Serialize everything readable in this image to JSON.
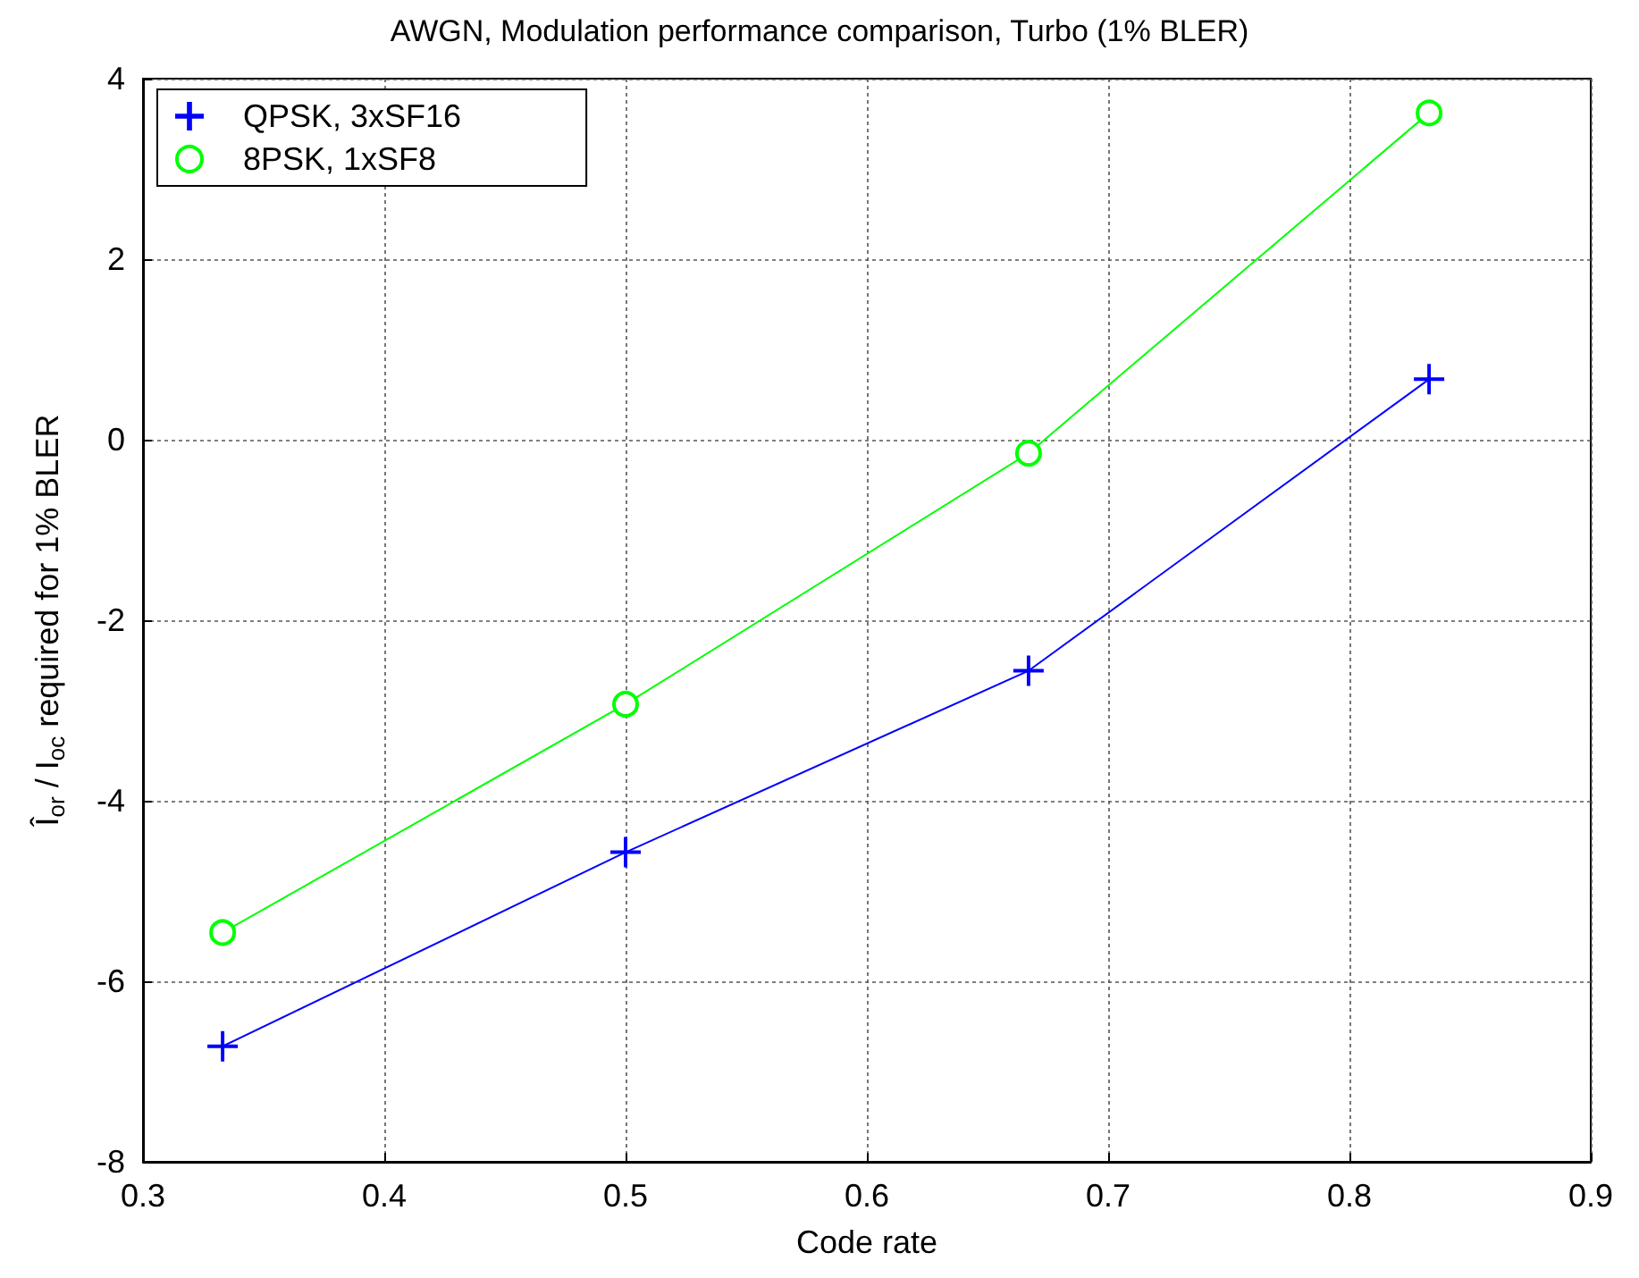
{
  "chart_data": {
    "type": "line",
    "title": "AWGN, Modulation performance comparison, Turbo (1% BLER)",
    "xlabel": "Code rate",
    "ylabel": "Î$_{or}$ / I$_{oc}$ required for 1% BLER",
    "x": [
      0.333,
      0.5,
      0.667,
      0.833
    ],
    "series": [
      {
        "name": "QPSK, 3xSF16",
        "color": "#0000ff",
        "marker": "cross",
        "values": [
          -6.72,
          -4.57,
          -2.56,
          0.67
        ]
      },
      {
        "name": "8PSK, 1xSF8",
        "color": "#00ff00",
        "marker": "circle",
        "values": [
          -5.46,
          -2.93,
          -0.15,
          3.62
        ]
      }
    ],
    "xlim": [
      0.3,
      0.9
    ],
    "xticks": [
      0.3,
      0.4,
      0.5,
      0.6,
      0.7,
      0.8,
      0.9
    ],
    "ylim": [
      -8,
      4
    ],
    "yticks": [
      -8,
      -6,
      -4,
      -2,
      0,
      2,
      4
    ],
    "grid": true,
    "legend": "top left",
    "line_style": "solid"
  }
}
